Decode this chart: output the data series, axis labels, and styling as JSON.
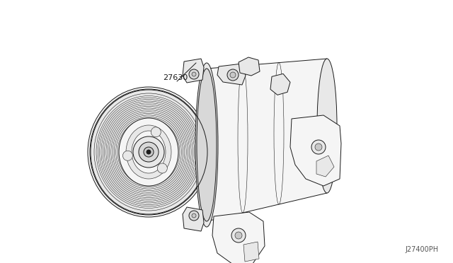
{
  "background_color": "#ffffff",
  "line_color": "#1a1a1a",
  "fill_light": "#f5f5f5",
  "fill_mid": "#e8e8e8",
  "fill_dark": "#d8d8d8",
  "fill_darker": "#c8c8c8",
  "label_part_number": "27630",
  "diagram_code": "J27400PH",
  "line_width": 0.7,
  "thin_lw": 0.4,
  "label_fontsize": 8,
  "code_fontsize": 7
}
